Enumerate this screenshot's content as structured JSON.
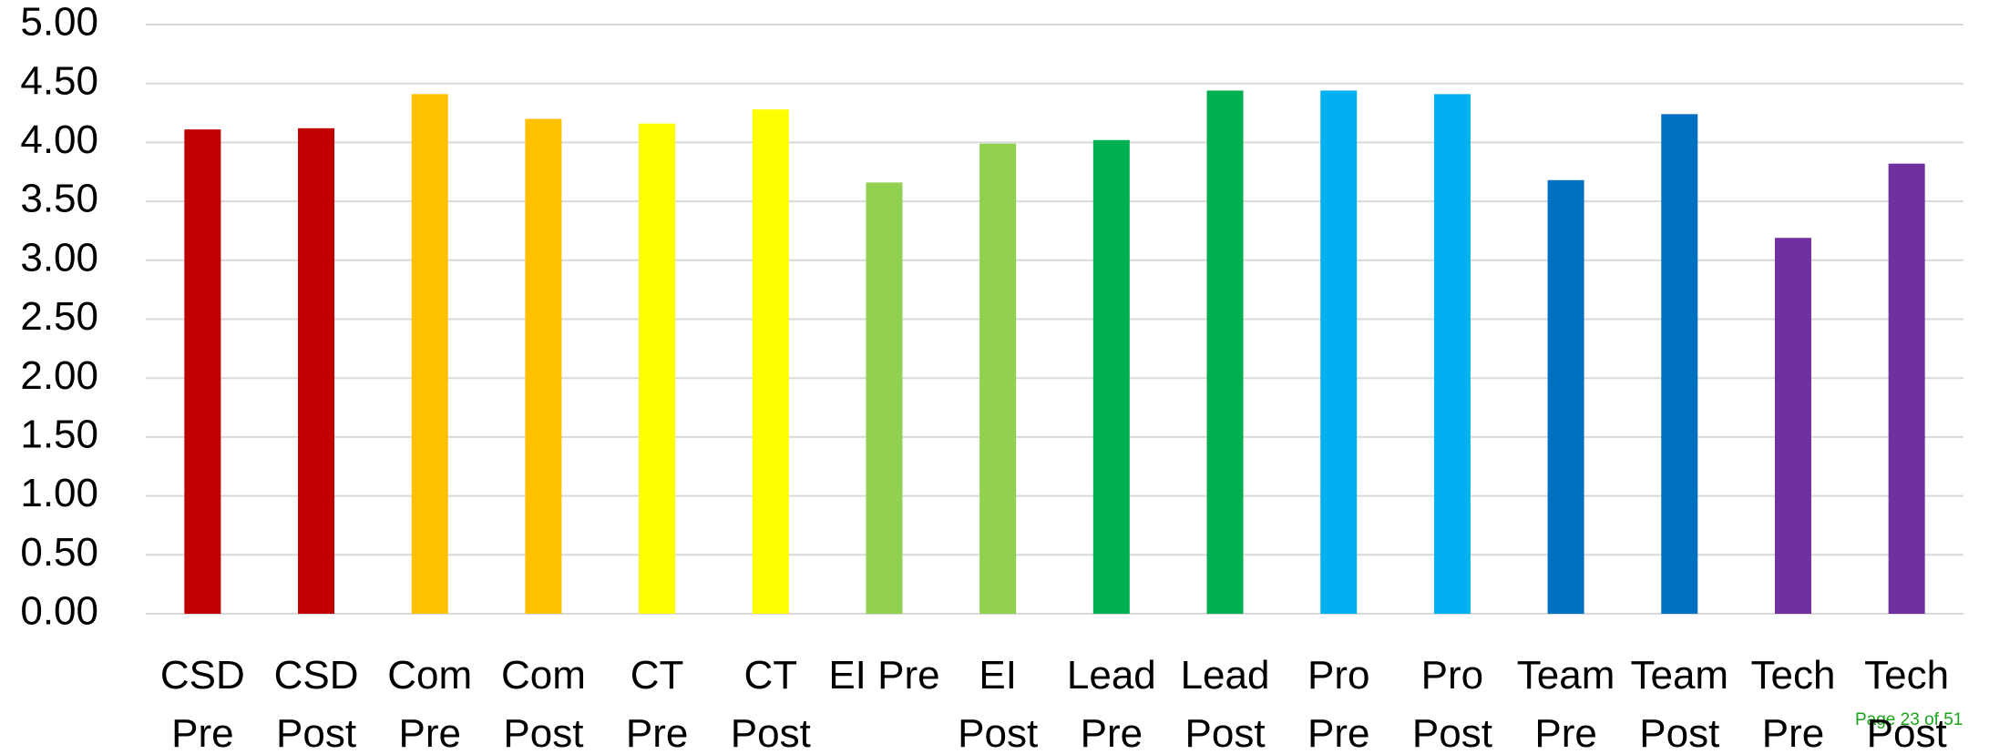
{
  "chart_data": {
    "type": "bar",
    "categories": [
      "CSD Pre",
      "CSD Post",
      "Com Pre",
      "Com Post",
      "CT Pre",
      "CT Post",
      "EI Pre",
      "EI Post",
      "Lead Pre",
      "Lead Post",
      "Pro Pre",
      "Pro Post",
      "Team Pre",
      "Team Post",
      "Tech Pre",
      "Tech Post"
    ],
    "values": [
      4.11,
      4.12,
      4.41,
      4.2,
      4.16,
      4.28,
      3.66,
      3.99,
      4.02,
      4.44,
      4.44,
      4.41,
      3.68,
      4.24,
      3.19,
      3.82
    ],
    "colors": [
      "#c00000",
      "#c00000",
      "#ffc000",
      "#ffc000",
      "#ffff00",
      "#ffff00",
      "#92d050",
      "#92d050",
      "#00b050",
      "#00b050",
      "#00b0f0",
      "#00b0f0",
      "#0070c0",
      "#0070c0",
      "#7030a0",
      "#7030a0"
    ],
    "ylim": [
      0,
      5
    ],
    "yticks": [
      {
        "value": 0,
        "label": "0.00"
      },
      {
        "value": 0.5,
        "label": "0.50"
      },
      {
        "value": 1,
        "label": "1.00"
      },
      {
        "value": 1.5,
        "label": "1.50"
      },
      {
        "value": 2,
        "label": "2.00"
      },
      {
        "value": 2.5,
        "label": "2.50"
      },
      {
        "value": 3,
        "label": "3.00"
      },
      {
        "value": 3.5,
        "label": "3.50"
      },
      {
        "value": 4,
        "label": "4.00"
      },
      {
        "value": 4.5,
        "label": "4.50"
      },
      {
        "value": 5,
        "label": "5.00"
      }
    ],
    "grid": true
  },
  "footer": "Page 23 of 51"
}
